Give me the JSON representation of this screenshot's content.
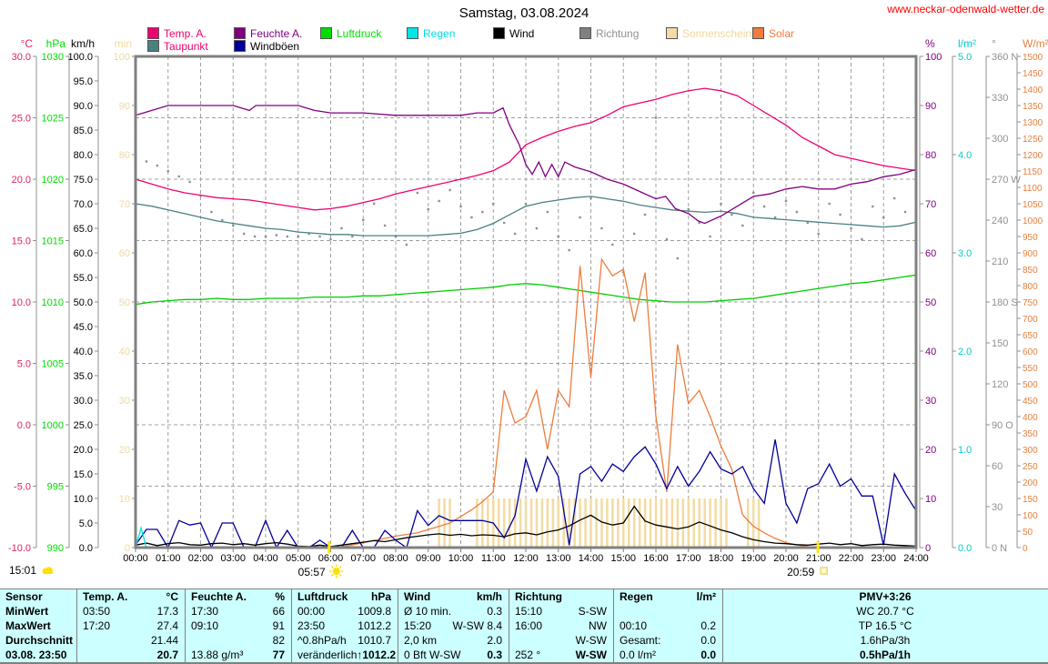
{
  "header": {
    "title": "Samstag, 03.08.2024",
    "website": "www.neckar-odenwald-wetter.de"
  },
  "sun": {
    "daylight": "15:01",
    "sunrise": "05:57",
    "sunset": "20:59"
  },
  "legend": {
    "row1": [
      {
        "label": "Temp. A.",
        "color": "#ee0070",
        "text_color": "#ee0070"
      },
      {
        "label": "Feuchte A.",
        "color": "#800080",
        "text_color": "#800080"
      },
      {
        "label": "Luftdruck",
        "color": "#00dd00",
        "text_color": "#00dd00"
      },
      {
        "label": "Regen",
        "color": "#00e5e5",
        "text_color": "#00dddd"
      },
      {
        "label": "Wind",
        "color": "#000000",
        "text_color": "#000000"
      },
      {
        "label": "Richtung",
        "color": "#808080",
        "text_color": "#909090"
      },
      {
        "label": "Sonnenschein",
        "color": "#f2dca4",
        "text_color": "#f0d8a0"
      },
      {
        "label": "Solar",
        "color": "#ee7c3c",
        "text_color": "#ee7c3c"
      }
    ],
    "row2": [
      {
        "label": "Taupunkt",
        "color": "#4a8080",
        "text_color": "#ee0070"
      },
      {
        "label": "Windböen",
        "color": "#000099",
        "text_color": "#000000"
      }
    ]
  },
  "chart_data": {
    "type": "line",
    "title": "Samstag, 03.08.2024",
    "x_unit": "hours",
    "xlim": [
      0,
      24
    ],
    "grid": "dashed",
    "x_labels": [
      "00:00",
      "01:00",
      "02:00",
      "03:00",
      "04:00",
      "05:00",
      "06:00",
      "07:00",
      "08:00",
      "09:00",
      "10:00",
      "11:00",
      "12:00",
      "13:00",
      "14:00",
      "15:00",
      "16:00",
      "17:00",
      "18:00",
      "19:00",
      "20:00",
      "21:00",
      "22:00",
      "23:00",
      "24:00"
    ],
    "axes": [
      {
        "unit": "°C",
        "side": "left",
        "min": -10,
        "max": 30,
        "step": 5,
        "dec": 1,
        "color": "#dd2268"
      },
      {
        "unit": "hPa",
        "side": "left",
        "min": 990,
        "max": 1030,
        "step": 5,
        "dec": 0,
        "color": "#00dd00"
      },
      {
        "unit": "km/h",
        "side": "left",
        "min": 0,
        "max": 100,
        "step": 5,
        "dec": 1,
        "color": "#000000"
      },
      {
        "unit": "min",
        "side": "left",
        "min": 0,
        "max": 100,
        "step": 10,
        "dec": 0,
        "color": "#f0d8a0"
      },
      {
        "unit": "%",
        "side": "right",
        "min": 0,
        "max": 100,
        "step": 10,
        "dec": 0,
        "color": "#800080"
      },
      {
        "unit": "l/m²",
        "side": "right",
        "min": 0,
        "max": 5,
        "step": 1,
        "dec": 1,
        "color": "#00cccc"
      },
      {
        "unit": "°",
        "side": "right",
        "min": 0,
        "max": 360,
        "step": 30,
        "dec": 0,
        "color": "#909090",
        "special": {
          "0": "0 N",
          "90": "90 O",
          "180": "180 S",
          "270": "270 W",
          "360": "360 N"
        }
      },
      {
        "unit": "W/m²",
        "side": "right",
        "min": 0,
        "max": 1500,
        "step": 50,
        "dec": 0,
        "color": "#e87f3c"
      }
    ],
    "series": [
      {
        "name": "Temp. A.",
        "axis": "°C",
        "color": "#ee0070",
        "x_start": 0,
        "x_step": 0.5,
        "values": [
          20.0,
          19.6,
          19.2,
          18.9,
          18.7,
          18.5,
          18.4,
          18.3,
          18.1,
          17.9,
          17.7,
          17.5,
          17.6,
          17.8,
          18.1,
          18.4,
          18.8,
          19.1,
          19.4,
          19.7,
          20.0,
          20.3,
          20.7,
          21.4,
          22.8,
          23.4,
          23.9,
          24.3,
          24.6,
          25.2,
          25.9,
          26.2,
          26.5,
          26.9,
          27.2,
          27.4,
          27.2,
          26.8,
          26.0,
          25.2,
          24.4,
          23.4,
          22.7,
          22.0,
          21.7,
          21.4,
          21.1,
          20.9,
          20.7
        ]
      },
      {
        "name": "Taupunkt",
        "axis": "°C",
        "color": "#4a8080",
        "x_start": 0,
        "x_step": 0.5,
        "values": [
          18.0,
          17.8,
          17.5,
          17.2,
          16.9,
          16.6,
          16.4,
          16.2,
          16.0,
          15.9,
          15.7,
          15.6,
          15.5,
          15.5,
          15.4,
          15.4,
          15.4,
          15.4,
          15.4,
          15.5,
          15.6,
          15.9,
          16.4,
          17.1,
          17.8,
          18.1,
          18.3,
          18.5,
          18.6,
          18.4,
          18.2,
          17.9,
          17.7,
          17.5,
          17.4,
          17.3,
          17.4,
          17.2,
          16.9,
          16.8,
          16.7,
          16.6,
          16.5,
          16.4,
          16.3,
          16.2,
          16.1,
          16.2,
          16.5
        ]
      },
      {
        "name": "Feuchte A.",
        "axis": "%",
        "color": "#800080",
        "x": [
          0,
          0.5,
          1,
          2,
          3,
          3.5,
          3.7,
          4,
          5,
          5.5,
          6,
          7,
          8,
          9,
          10,
          10.5,
          11,
          11.3,
          11.5,
          11.8,
          12,
          12.2,
          12.4,
          12.6,
          12.8,
          13,
          13.2,
          13.5,
          14,
          14.5,
          15,
          15.5,
          16,
          16.3,
          16.6,
          17,
          17.3,
          17.5,
          18,
          18.5,
          19,
          19.5,
          20,
          20.5,
          21,
          21.5,
          22,
          22.5,
          23,
          23.5,
          24
        ],
        "values": [
          88,
          89,
          90,
          90,
          90,
          89,
          90,
          90,
          90,
          89,
          88.5,
          88.5,
          88,
          88,
          88,
          88.5,
          88.5,
          89.5,
          86,
          82,
          78,
          76,
          78.5,
          75.5,
          78,
          75.5,
          78.5,
          77.5,
          76.5,
          75,
          74,
          72.5,
          71,
          71.5,
          69,
          68,
          66.5,
          66,
          67.5,
          69.5,
          71.5,
          72,
          73,
          73.5,
          73,
          73,
          74,
          74.5,
          75.5,
          76,
          77
        ]
      },
      {
        "name": "Luftdruck",
        "axis": "hPa",
        "color": "#00cc00",
        "x_start": 0,
        "x_step": 0.5,
        "values": [
          1009.8,
          1010.0,
          1010.1,
          1010.2,
          1010.2,
          1010.3,
          1010.2,
          1010.2,
          1010.3,
          1010.3,
          1010.3,
          1010.4,
          1010.4,
          1010.4,
          1010.5,
          1010.5,
          1010.6,
          1010.7,
          1010.8,
          1010.9,
          1011.0,
          1011.1,
          1011.2,
          1011.4,
          1011.5,
          1011.4,
          1011.2,
          1011.0,
          1010.8,
          1010.6,
          1010.4,
          1010.2,
          1010.1,
          1010.0,
          1010.0,
          1010.0,
          1010.1,
          1010.2,
          1010.3,
          1010.5,
          1010.7,
          1010.9,
          1011.1,
          1011.3,
          1011.5,
          1011.6,
          1011.8,
          1012.0,
          1012.2
        ]
      },
      {
        "name": "Solar",
        "axis": "W/m²",
        "color": "#ee7c3c",
        "x_start": 0,
        "x_step": 0.33333,
        "values": [
          0,
          0,
          0,
          0,
          0,
          0,
          0,
          0,
          0,
          0,
          0,
          0,
          0,
          0,
          0,
          0,
          0,
          0,
          0,
          2,
          8,
          15,
          22,
          28,
          35,
          40,
          45,
          55,
          65,
          75,
          95,
          115,
          140,
          170,
          480,
          380,
          400,
          480,
          300,
          480,
          430,
          860,
          520,
          880,
          830,
          850,
          690,
          840,
          400,
          170,
          620,
          440,
          480,
          400,
          310,
          240,
          100,
          65,
          45,
          28,
          15,
          8,
          3,
          0,
          0,
          0,
          0,
          0,
          0,
          0,
          0,
          0,
          0
        ]
      },
      {
        "name": "Windböen",
        "axis": "km/h",
        "color": "#000099",
        "x_start": 0,
        "x_step": 0.33333,
        "values": [
          0.5,
          3.7,
          3.7,
          0,
          5.5,
          4.6,
          5,
          0,
          5,
          5,
          0,
          0,
          5.5,
          0,
          3.5,
          0,
          0,
          1.5,
          0,
          0,
          3.5,
          0,
          0,
          3.5,
          1.5,
          0,
          7.5,
          4.5,
          6.5,
          5.5,
          5.5,
          5.5,
          5.5,
          5,
          2,
          6.5,
          18,
          11.5,
          18.5,
          14.5,
          0.5,
          15,
          16.5,
          13.5,
          17,
          15.5,
          18.5,
          20.5,
          17,
          12,
          16.5,
          12.5,
          15.5,
          19.5,
          16,
          15,
          16.5,
          12,
          9,
          22,
          9,
          5,
          12,
          13,
          17,
          12.5,
          14,
          10.5,
          10.5,
          0.5,
          15,
          11,
          7.5
        ]
      },
      {
        "name": "Wind",
        "axis": "km/h",
        "color": "#000000",
        "x_start": 0,
        "x_step": 0.33333,
        "values": [
          0.5,
          0.9,
          0.4,
          0.8,
          1.0,
          0.6,
          0.5,
          0.8,
          0.9,
          0.6,
          0.8,
          0.5,
          0.8,
          1.0,
          0.7,
          0.3,
          0.2,
          0.5,
          0.2,
          0.5,
          0.8,
          1.1,
          1.4,
          1.2,
          1.6,
          2.0,
          2.3,
          2.6,
          2.8,
          2.5,
          2.7,
          2.4,
          2.6,
          2.5,
          2.2,
          2.8,
          3.0,
          2.6,
          3.2,
          3.6,
          4.4,
          5.6,
          6.6,
          5.2,
          4.6,
          5.0,
          8.4,
          5.4,
          4.6,
          4.2,
          3.8,
          4.2,
          5.2,
          4.4,
          3.6,
          3.0,
          2.2,
          1.6,
          1.2,
          0.9,
          0.8,
          0.6,
          0.5,
          0.7,
          0.9,
          0.6,
          0.8,
          0.4,
          0.6,
          0.7,
          0.5,
          0.4,
          0.3
        ]
      },
      {
        "name": "Regen",
        "axis": "l/m²",
        "color": "#00e5e5",
        "x": [
          0,
          0.17,
          0.33,
          24
        ],
        "values": [
          0,
          0.2,
          0,
          0
        ]
      }
    ],
    "scatter": {
      "name": "Richtung",
      "axis": "°",
      "color": "#909090",
      "x_start": 0,
      "x_step": 0.33333,
      "values": [
        288,
        283,
        280,
        276,
        272,
        268,
        258,
        246,
        240,
        236,
        230,
        228,
        228,
        229,
        228,
        228,
        230,
        228,
        226,
        234,
        228,
        240,
        252,
        236,
        228,
        222,
        260,
        248,
        254,
        262,
        250,
        242,
        246,
        252,
        238,
        230,
        252,
        234,
        246,
        228,
        218,
        242,
        256,
        234,
        222,
        202,
        230,
        244,
        315,
        226,
        212,
        248,
        238,
        228,
        252,
        244,
        236,
        260,
        250,
        242,
        254,
        246,
        238,
        230,
        252,
        244,
        234,
        226,
        250,
        242,
        256,
        246,
        252
      ]
    },
    "bars": {
      "name": "Sonnenschein",
      "axis": "min",
      "color": "#f2dca4",
      "value": 10,
      "intervals": [
        [
          9.33,
          9.67
        ],
        [
          10.5,
          18.33
        ],
        [
          18.83,
          19.17
        ]
      ]
    }
  },
  "table": {
    "row_labels": [
      "MinWert",
      "MaxWert",
      "Durchschnitt",
      "03.08. 23:50"
    ],
    "columns": [
      {
        "header": "Sensor",
        "unit": "",
        "kind": "labels"
      },
      {
        "header": "Temp. A.",
        "unit": "°C",
        "rows": [
          [
            "03:50",
            "17.3"
          ],
          [
            "17:20",
            "27.4"
          ],
          [
            "",
            "21.44"
          ],
          [
            "",
            "20.7"
          ]
        ]
      },
      {
        "header": "Feuchte A.",
        "unit": "%",
        "rows": [
          [
            "17:30",
            "66"
          ],
          [
            "09:10",
            "91"
          ],
          [
            "",
            "82"
          ],
          [
            "13.88 g/m³",
            "77"
          ]
        ]
      },
      {
        "header": "Luftdruck",
        "unit": "hPa",
        "rows": [
          [
            "00:00",
            "1009.8"
          ],
          [
            "23:50",
            "1012.2"
          ],
          [
            "^0.8hPa/h",
            "1010.7"
          ],
          [
            "veränderlich",
            "↑1012.2"
          ]
        ]
      },
      {
        "header": "Wind",
        "unit": "km/h",
        "rows": [
          [
            "Ø 10 min.",
            "0.3"
          ],
          [
            "15:20",
            "W-SW 8.4"
          ],
          [
            "2,0 km",
            "2.0"
          ],
          [
            "0 Bft W-SW",
            "0.3"
          ]
        ]
      },
      {
        "header": "Richtung",
        "unit": "",
        "rows": [
          [
            "15:10",
            "S-SW"
          ],
          [
            "16:00",
            "NW"
          ],
          [
            "",
            "W-SW"
          ],
          [
            "252 °",
            "W-SW"
          ]
        ]
      },
      {
        "header": "Regen",
        "unit": "l/m²",
        "rows": [
          [
            "",
            ""
          ],
          [
            "00:10",
            "0.2"
          ],
          [
            "Gesamt:",
            "0.0"
          ],
          [
            "0.0 l/m²",
            "0.0"
          ]
        ]
      },
      {
        "header": "PMV+3:26",
        "unit": "",
        "center": true,
        "rows": [
          [
            "",
            "WC 20.7 °C"
          ],
          [
            "",
            "TP 16.5 °C"
          ],
          [
            "",
            "1.6hPa/3h"
          ],
          [
            "",
            "0.5hPa/1h"
          ]
        ]
      }
    ]
  }
}
